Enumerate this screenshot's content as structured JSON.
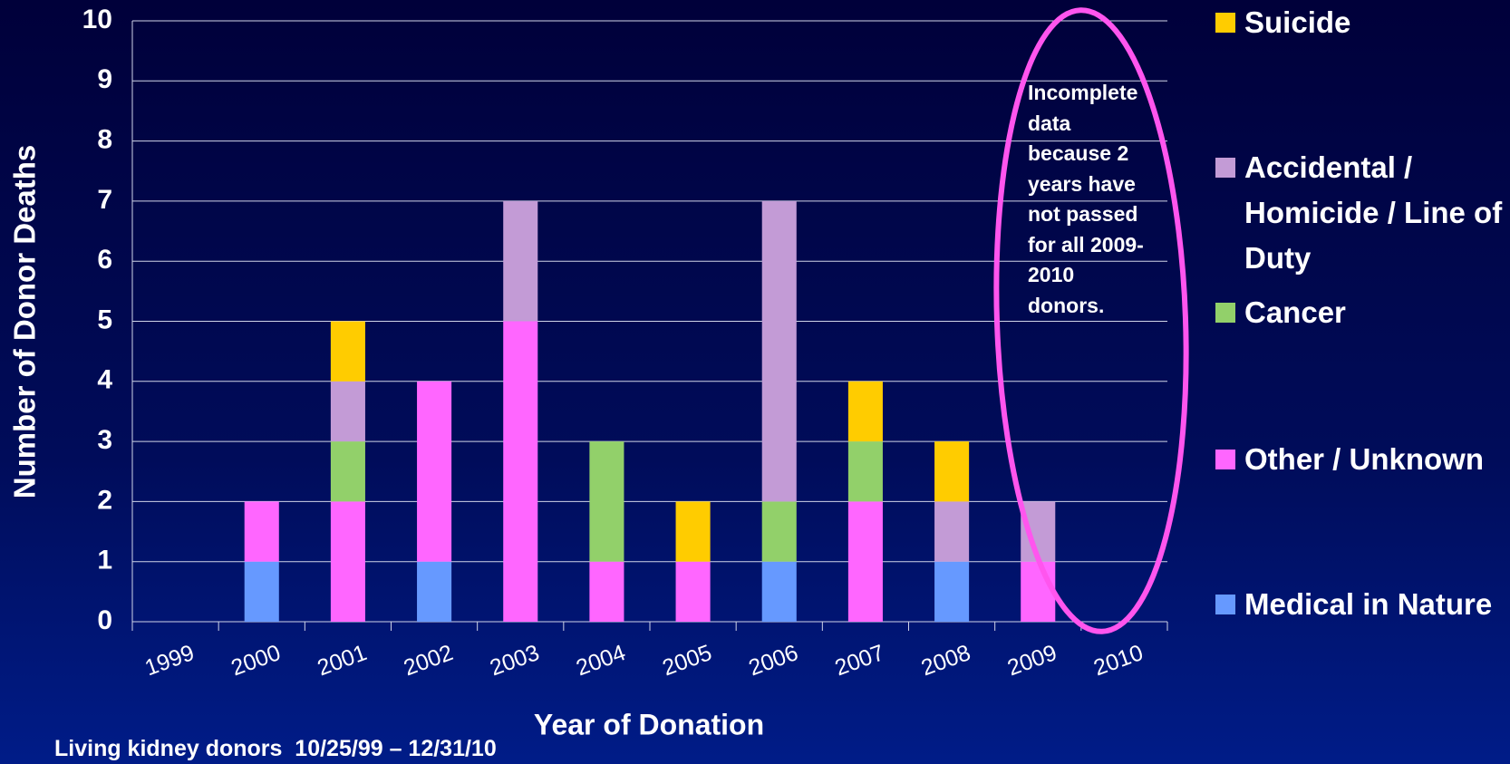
{
  "chart_data": {
    "type": "stacked_bar",
    "y_label": "Number of Donor Deaths",
    "x_label": "Year of Donation",
    "footnote": "Living kidney donors  10/25/99 – 12/31/10",
    "annotation": "Incomplete data because  2 years have not passed for  all 2009-2010 donors.",
    "categories": [
      "1999",
      "2000",
      "2001",
      "2002",
      "2003",
      "2004",
      "2005",
      "2006",
      "2007",
      "2008",
      "2009",
      "2010"
    ],
    "series": [
      {
        "name": "Medical in Nature",
        "color": "#6699ff",
        "values": [
          0,
          1,
          0,
          1,
          0,
          0,
          0,
          1,
          0,
          1,
          0,
          0
        ]
      },
      {
        "name": "Other / Unknown",
        "color": "#ff66ff",
        "values": [
          0,
          1,
          2,
          3,
          5,
          1,
          1,
          0,
          2,
          0,
          1,
          0
        ]
      },
      {
        "name": "Cancer",
        "color": "#92d06a",
        "values": [
          0,
          0,
          1,
          0,
          0,
          2,
          0,
          1,
          1,
          0,
          0,
          0
        ]
      },
      {
        "name": "Accidental / Homicide / Line of Duty",
        "color": "#c39bd6",
        "values": [
          0,
          0,
          1,
          0,
          2,
          0,
          0,
          5,
          0,
          1,
          1,
          0
        ]
      },
      {
        "name": "Suicide",
        "color": "#ffcc00",
        "values": [
          0,
          0,
          1,
          0,
          0,
          0,
          1,
          0,
          1,
          1,
          0,
          0
        ]
      }
    ],
    "ylim": [
      0,
      10
    ],
    "yticks": [
      0,
      1,
      2,
      3,
      4,
      5,
      6,
      7,
      8,
      9,
      10
    ],
    "grid": true
  }
}
